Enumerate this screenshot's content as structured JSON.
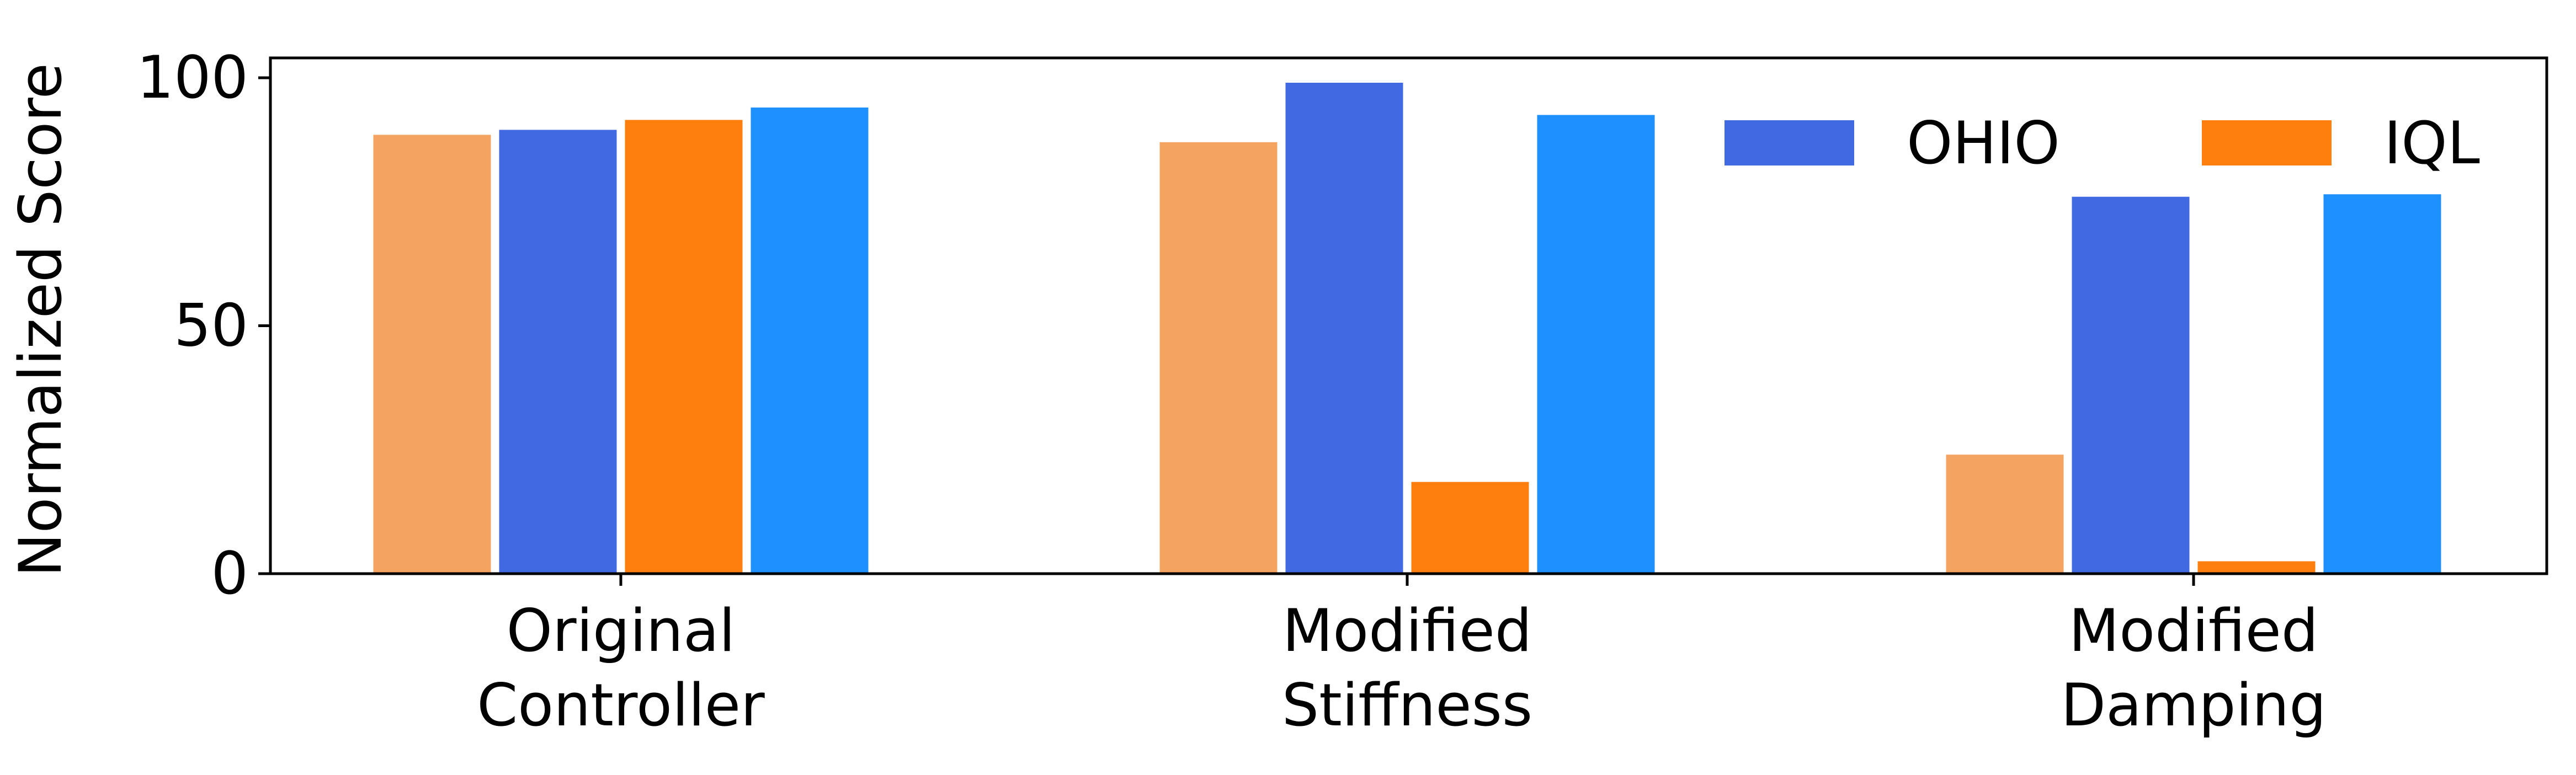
{
  "chart_data": {
    "type": "bar",
    "title": "",
    "xlabel": "",
    "ylabel": "Normalized Score",
    "ylim": [
      0,
      104
    ],
    "yticks": [
      0,
      50,
      100
    ],
    "grid": false,
    "legend_position": "top-right",
    "categories": [
      [
        "Original",
        "Controller"
      ],
      [
        "Modified",
        "Stiffness"
      ],
      [
        "Modified",
        "Damping"
      ]
    ],
    "series": [
      {
        "values": [
          88.5,
          87.0,
          24.0
        ],
        "color": "#F4A460"
      },
      {
        "name": "OHIO",
        "values": [
          89.5,
          99.0,
          76.0
        ],
        "color": "#4169E1"
      },
      {
        "name": "IQL",
        "values": [
          91.5,
          18.5,
          2.5
        ],
        "color": "#FF7F0E"
      },
      {
        "values": [
          94.0,
          92.5,
          76.5
        ],
        "color": "#1E90FF"
      }
    ]
  }
}
